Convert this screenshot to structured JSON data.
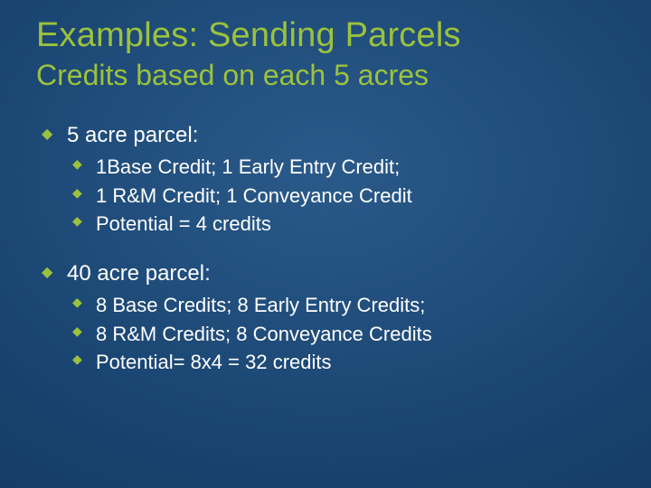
{
  "slide": {
    "title": "Examples: Sending Parcels",
    "subtitle": "Credits based on each 5 acres",
    "title_color": "#9cc23c",
    "subtitle_color": "#9cc23c",
    "body_color": "#ffffff",
    "bullet_color": "#9cc23c",
    "background_gradient_inner": "#2a5a8a",
    "background_gradient_mid": "#1a4572",
    "background_gradient_outer": "#0d2f52",
    "title_fontsize": 38,
    "subtitle_fontsize": 32,
    "outer_fontsize": 24,
    "inner_fontsize": 22,
    "groups": [
      {
        "heading": "5 acre parcel:",
        "items": [
          "1Base Credit; 1 Early Entry Credit;",
          "1 R&M Credit; 1 Conveyance Credit",
          "Potential = 4 credits"
        ]
      },
      {
        "heading": "40 acre parcel:",
        "items": [
          "8 Base Credits; 8 Early Entry Credits;",
          "8 R&M Credits; 8 Conveyance Credits",
          "Potential= 8x4 = 32 credits"
        ]
      }
    ]
  }
}
